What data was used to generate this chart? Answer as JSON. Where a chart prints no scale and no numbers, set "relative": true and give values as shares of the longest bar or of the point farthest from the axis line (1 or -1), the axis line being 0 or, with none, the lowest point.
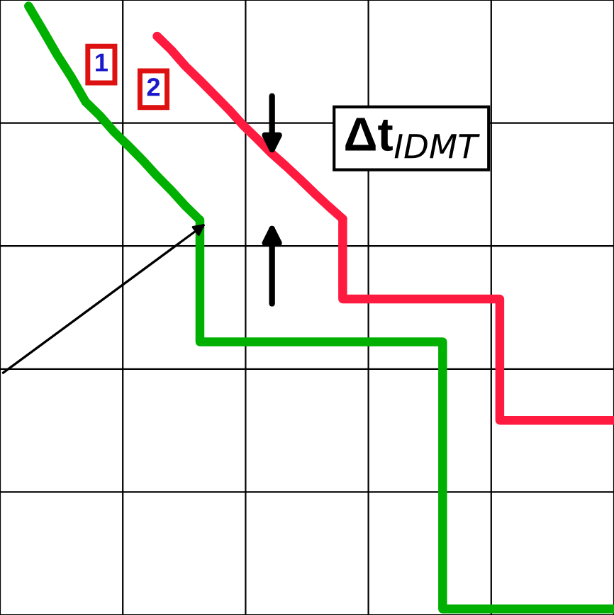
{
  "chart_data": {
    "type": "line",
    "relative": true,
    "grid": true,
    "line_style": "solid",
    "marker": "none",
    "categories": [
      null,
      null,
      null,
      null,
      null,
      null,
      null,
      null,
      null,
      null,
      null,
      null,
      null,
      null,
      null,
      null,
      null,
      null,
      null,
      null,
      null,
      null,
      null,
      null,
      null,
      null,
      null,
      null,
      null,
      null,
      null,
      null,
      null,
      null,
      null,
      null,
      null,
      null,
      null,
      null,
      null,
      null,
      null,
      null
    ],
    "series": [
      {
        "color": "#00b000",
        "values": [
          null,
          null,
          1.0,
          0.96,
          0.919,
          0.882,
          0.841,
          0.818,
          0.791,
          0.768,
          0.744,
          0.718,
          0.694,
          0.668,
          0.645,
          null,
          null,
          null,
          null,
          null,
          null,
          null,
          null,
          null,
          null,
          null,
          null,
          null,
          null,
          null,
          null,
          null,
          null,
          null,
          null,
          null,
          null,
          null,
          null,
          null,
          null,
          null,
          null,
          null
        ]
      },
      {
        "type": "step",
        "color": "#00b000",
        "values": [
          null,
          null,
          null,
          null,
          null,
          null,
          null,
          null,
          null,
          null,
          null,
          null,
          null,
          null,
          0.645,
          0.443,
          0.443,
          0.443,
          0.443,
          0.443,
          0.443,
          0.443,
          0.443,
          0.443,
          0.443,
          0.443,
          0.443,
          0.443,
          0.443,
          0.443,
          0.443,
          0.443,
          0,
          0,
          0,
          0,
          0,
          0,
          0,
          0,
          0,
          0,
          0,
          0
        ]
      },
      {
        "color": "#ff1a40",
        "values": [
          null,
          null,
          null,
          null,
          null,
          null,
          null,
          null,
          null,
          null,
          null,
          0.95,
          0.927,
          0.9,
          0.877,
          0.853,
          0.829,
          0.803,
          0.78,
          0.756,
          0.735,
          0.713,
          0.69,
          0.668,
          0.647,
          null,
          null,
          null,
          null,
          null,
          null,
          null,
          null,
          null,
          null,
          null,
          null,
          null,
          null,
          null,
          null,
          null,
          null,
          null
        ]
      },
      {
        "type": "step",
        "color": "#ff1a40",
        "values": [
          null,
          null,
          null,
          null,
          null,
          null,
          null,
          null,
          null,
          null,
          null,
          null,
          null,
          null,
          null,
          null,
          null,
          null,
          null,
          null,
          null,
          null,
          null,
          null,
          0.647,
          0.514,
          0.514,
          0.514,
          0.514,
          0.514,
          0.514,
          0.514,
          0.514,
          0.514,
          0.514,
          0.514,
          0.313,
          0.313,
          0.313,
          0.313,
          0.313,
          0.313,
          0.313,
          0.313
        ]
      }
    ],
    "annotations": [
      "1",
      "2",
      "Δt$_{IDMT}$"
    ]
  }
}
